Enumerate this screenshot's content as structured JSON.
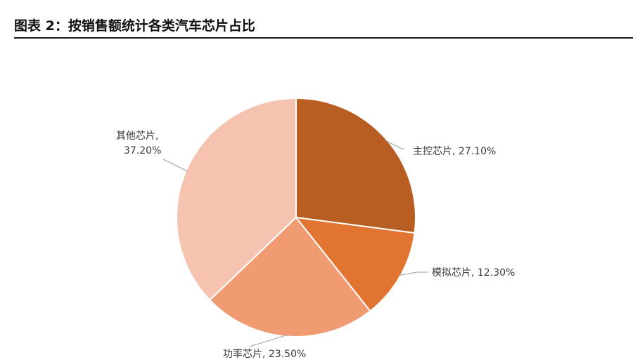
{
  "figure": {
    "title": "图表 2：按销售额统计各类汽车芯片占比"
  },
  "chart_data": {
    "type": "pie",
    "title": "",
    "categories": [
      "主控芯片",
      "模拟芯片",
      "功率芯片",
      "其他芯片"
    ],
    "values": [
      27.1,
      12.3,
      23.5,
      37.2
    ],
    "unit": "%",
    "labels": [
      "主控芯片, 27.10%",
      "模拟芯片, 12.30%",
      "功率芯片, 23.50%",
      "其他芯片,",
      "37.20%"
    ],
    "colors": [
      "#b85e22",
      "#e07430",
      "#f09b72",
      "#f5c3b0"
    ],
    "start_angle": "12 o'clock",
    "direction": "clockwise",
    "legend": "none"
  }
}
